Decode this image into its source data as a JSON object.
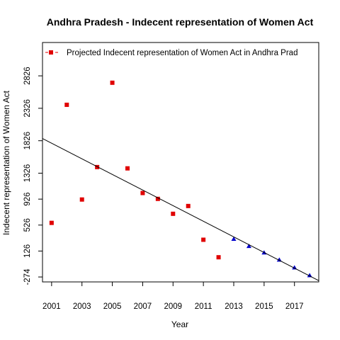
{
  "chart_data": {
    "type": "scatter",
    "title": "Andhra Pradesh  -  Indecent representation of Women Act",
    "xlabel": "Year",
    "ylabel": "Indecent representation of Women Act",
    "xlim": [
      2000.4,
      2018.6
    ],
    "ylim": [
      -350,
      3340
    ],
    "x_ticks": [
      2001,
      2003,
      2005,
      2007,
      2009,
      2011,
      2013,
      2015,
      2017
    ],
    "x_tick_labels": [
      "2001",
      "2003",
      "2005",
      "2007",
      "2009",
      "2011",
      "2013",
      "2015",
      "2017"
    ],
    "y_ticks": [
      -274,
      126,
      526,
      926,
      1326,
      1826,
      2326,
      2826
    ],
    "y_tick_labels": [
      "-274",
      "126",
      "526",
      "926",
      "1326",
      "1826",
      "2326",
      "2826"
    ],
    "legend": {
      "position": "top-left",
      "entries": [
        {
          "label": "Projected  Indecent representation of Women Act  in  Andhra Prad",
          "marker": "square",
          "line": "dashed"
        }
      ]
    },
    "series": [
      {
        "marker": "square",
        "color": "#e00000",
        "x": [
          2001,
          2002,
          2003,
          2004,
          2005,
          2006,
          2007,
          2008,
          2009,
          2010,
          2011,
          2012
        ],
        "y": [
          560,
          2380,
          920,
          1420,
          2720,
          1400,
          1020,
          930,
          700,
          820,
          300,
          30
        ]
      },
      {
        "marker": "triangle",
        "color": "#0000cc",
        "x": [
          2013,
          2014,
          2015,
          2016,
          2017,
          2018
        ],
        "y": [
          310,
          200,
          100,
          -10,
          -130,
          -250
        ]
      },
      {
        "type": "line",
        "color": "#000000",
        "x": [
          2000.4,
          2018.6
        ],
        "y": [
          1860,
          -330
        ]
      }
    ],
    "grid": false
  }
}
